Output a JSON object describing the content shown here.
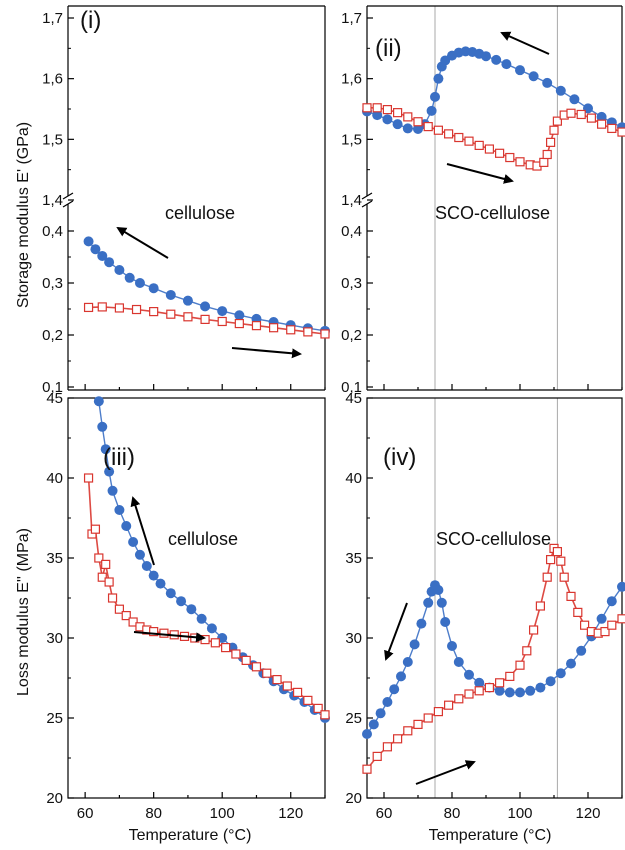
{
  "colors": {
    "cooling": "#3a6fc4",
    "heating": "#d9362f",
    "guide": "#aaaaaa",
    "arrow": "#000000"
  },
  "chart_data": [
    {
      "type": "scatter",
      "panel_label": "(i)",
      "annotation": "cellulose",
      "xlim": [
        55,
        130
      ],
      "y_upper_ticks": [
        "1,4",
        "1,5",
        "1,6",
        "1,7"
      ],
      "y_lower_ticks": [
        "0,1",
        "0,2",
        "0,3",
        "0,4"
      ],
      "ylabel": "Storage modulus E' (GPa)",
      "series": [
        {
          "role": "cooling",
          "marker": "filled-circle",
          "x": [
            61,
            63,
            65,
            67,
            70,
            73,
            76,
            80,
            85,
            90,
            95,
            100,
            105,
            110,
            115,
            120,
            125,
            130
          ],
          "y": [
            0.38,
            0.365,
            0.352,
            0.34,
            0.325,
            0.31,
            0.3,
            0.29,
            0.277,
            0.266,
            0.255,
            0.246,
            0.238,
            0.231,
            0.225,
            0.219,
            0.213,
            0.208
          ]
        },
        {
          "role": "heating",
          "marker": "open-square",
          "x": [
            61,
            65,
            70,
            75,
            80,
            85,
            90,
            95,
            100,
            105,
            110,
            115,
            120,
            125,
            130
          ],
          "y": [
            0.253,
            0.254,
            0.252,
            0.249,
            0.245,
            0.24,
            0.235,
            0.23,
            0.226,
            0.222,
            0.218,
            0.214,
            0.21,
            0.206,
            0.202
          ]
        }
      ]
    },
    {
      "type": "scatter",
      "panel_label": "(ii)",
      "annotation": "SCO-cellulose",
      "xlim": [
        55,
        130
      ],
      "y_upper_ticks": [
        "1,4",
        "1,5",
        "1,6",
        "1,7"
      ],
      "y_lower_ticks": [
        "0,1",
        "0,2",
        "0,3",
        "0,4"
      ],
      "guides_x": [
        75,
        111
      ],
      "series": [
        {
          "role": "cooling",
          "marker": "filled-circle",
          "x": [
            55,
            58,
            61,
            64,
            67,
            70,
            72,
            74,
            75,
            76,
            77,
            78,
            80,
            82,
            84,
            86,
            88,
            90,
            93,
            96,
            100,
            104,
            108,
            112,
            116,
            120,
            124,
            127,
            130
          ],
          "y": [
            1.546,
            1.54,
            1.533,
            1.525,
            1.518,
            1.517,
            1.525,
            1.547,
            1.57,
            1.6,
            1.62,
            1.63,
            1.638,
            1.643,
            1.645,
            1.644,
            1.641,
            1.637,
            1.631,
            1.624,
            1.614,
            1.604,
            1.593,
            1.58,
            1.566,
            1.551,
            1.537,
            1.528,
            1.52
          ]
        },
        {
          "role": "heating",
          "marker": "open-square",
          "x": [
            55,
            58,
            61,
            64,
            67,
            70,
            73,
            76,
            79,
            82,
            85,
            88,
            91,
            94,
            97,
            100,
            103,
            105,
            107,
            108,
            109,
            110,
            111,
            113,
            115,
            118,
            121,
            124,
            127,
            130
          ],
          "y": [
            1.552,
            1.552,
            1.549,
            1.544,
            1.537,
            1.529,
            1.521,
            1.515,
            1.509,
            1.503,
            1.497,
            1.49,
            1.484,
            1.477,
            1.47,
            1.463,
            1.458,
            1.456,
            1.462,
            1.475,
            1.495,
            1.515,
            1.53,
            1.54,
            1.543,
            1.541,
            1.535,
            1.525,
            1.518,
            1.512
          ]
        }
      ]
    },
    {
      "type": "scatter",
      "panel_label": "(iii)",
      "annotation": "cellulose",
      "xlim": [
        55,
        130
      ],
      "ylim": [
        20,
        45
      ],
      "y_ticks": [
        20,
        25,
        30,
        35,
        40,
        45
      ],
      "x_ticks": [
        60,
        80,
        100,
        120
      ],
      "xlabel": "Temperature (°C)",
      "ylabel": "Loss modulus E'' (MPa)",
      "series": [
        {
          "role": "cooling",
          "marker": "filled-circle",
          "x": [
            64,
            65,
            66,
            67,
            68,
            70,
            72,
            74,
            76,
            78,
            80,
            82,
            85,
            88,
            91,
            94,
            97,
            100,
            103,
            106,
            109,
            112,
            115,
            118,
            121,
            124,
            127,
            130
          ],
          "y": [
            44.8,
            43.2,
            41.8,
            40.4,
            39.2,
            38.0,
            37.0,
            36.0,
            35.2,
            34.5,
            33.9,
            33.4,
            32.8,
            32.3,
            31.8,
            31.2,
            30.6,
            30.0,
            29.4,
            28.8,
            28.3,
            27.8,
            27.3,
            26.8,
            26.4,
            26.0,
            25.5,
            25.0
          ]
        },
        {
          "role": "heating",
          "marker": "open-square",
          "x": [
            61,
            62,
            63,
            64,
            65,
            66,
            67,
            68,
            70,
            72,
            74,
            76,
            78,
            80,
            83,
            86,
            89,
            92,
            95,
            98,
            101,
            104,
            107,
            110,
            113,
            116,
            119,
            122,
            125,
            128,
            130
          ],
          "y": [
            40.0,
            36.5,
            36.8,
            35.0,
            33.8,
            34.6,
            33.5,
            32.5,
            31.8,
            31.4,
            31.0,
            30.7,
            30.5,
            30.4,
            30.3,
            30.2,
            30.1,
            30.0,
            29.9,
            29.7,
            29.4,
            29.0,
            28.6,
            28.2,
            27.8,
            27.4,
            27.0,
            26.6,
            26.1,
            25.6,
            25.2
          ]
        }
      ]
    },
    {
      "type": "scatter",
      "panel_label": "(iv)",
      "annotation": "SCO-cellulose",
      "xlim": [
        55,
        130
      ],
      "ylim": [
        20,
        45
      ],
      "y_ticks": [
        20,
        25,
        30,
        35,
        40,
        45
      ],
      "x_ticks": [
        60,
        80,
        100,
        120
      ],
      "xlabel": "Temperature (°C)",
      "guides_x": [
        75,
        111
      ],
      "series": [
        {
          "role": "cooling",
          "marker": "filled-circle",
          "x": [
            55,
            57,
            59,
            61,
            63,
            65,
            67,
            69,
            71,
            73,
            74,
            75,
            76,
            77,
            78,
            80,
            82,
            85,
            88,
            91,
            94,
            97,
            100,
            103,
            106,
            109,
            112,
            115,
            118,
            121,
            124,
            127,
            130
          ],
          "y": [
            24.0,
            24.6,
            25.3,
            26.0,
            26.8,
            27.6,
            28.5,
            29.6,
            30.9,
            32.2,
            32.9,
            33.3,
            33.0,
            32.2,
            31.0,
            29.5,
            28.5,
            27.7,
            27.2,
            26.9,
            26.7,
            26.6,
            26.6,
            26.7,
            26.9,
            27.3,
            27.8,
            28.4,
            29.2,
            30.1,
            31.2,
            32.3,
            33.2
          ]
        },
        {
          "role": "heating",
          "marker": "open-square",
          "x": [
            55,
            58,
            61,
            64,
            67,
            70,
            73,
            76,
            79,
            82,
            85,
            88,
            91,
            94,
            97,
            100,
            102,
            104,
            106,
            108,
            109,
            110,
            111,
            112,
            113,
            115,
            117,
            119,
            121,
            123,
            125,
            127,
            130
          ],
          "y": [
            21.8,
            22.6,
            23.2,
            23.7,
            24.2,
            24.6,
            25.0,
            25.4,
            25.8,
            26.2,
            26.5,
            26.7,
            26.9,
            27.2,
            27.6,
            28.3,
            29.2,
            30.5,
            32.0,
            33.8,
            34.9,
            35.6,
            35.4,
            34.8,
            33.8,
            32.6,
            31.6,
            30.8,
            30.4,
            30.3,
            30.4,
            30.8,
            31.2
          ]
        }
      ]
    }
  ]
}
